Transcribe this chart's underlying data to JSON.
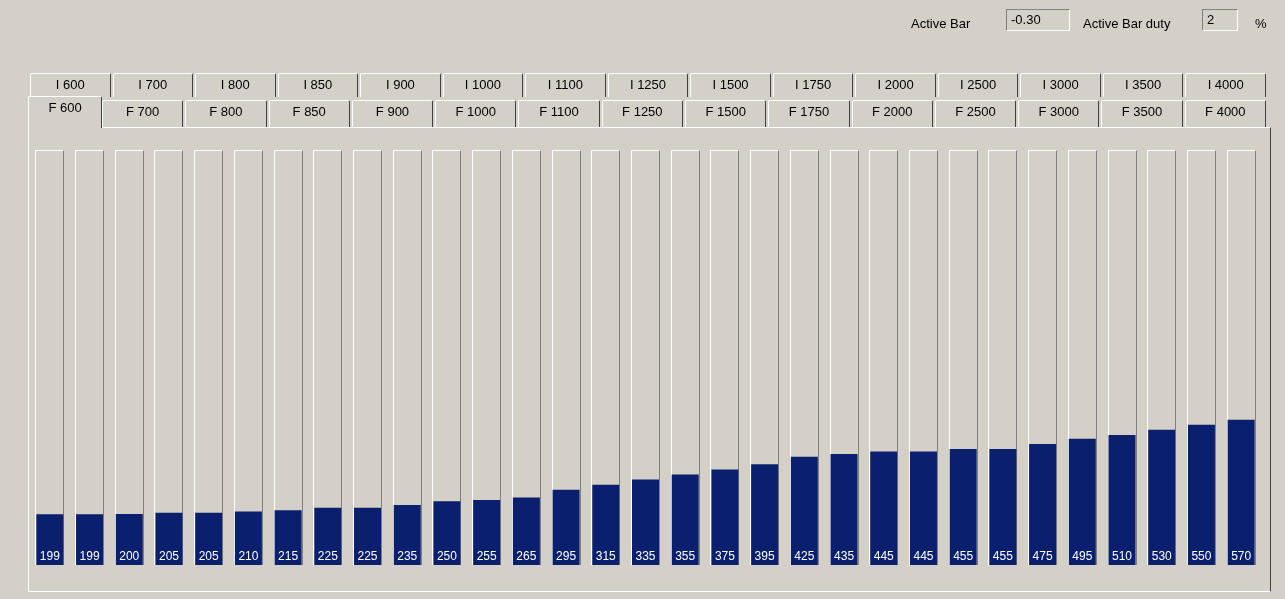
{
  "chart_data": {
    "type": "bar",
    "categories": [
      null,
      null,
      null,
      null,
      null,
      null,
      null,
      null,
      null,
      null,
      null,
      null,
      null,
      null,
      null,
      null,
      null,
      null,
      null,
      null,
      null,
      null,
      null,
      null,
      null,
      null,
      null,
      null,
      null,
      null,
      null
    ],
    "values": [
      199,
      199,
      200,
      205,
      205,
      210,
      215,
      225,
      225,
      235,
      250,
      255,
      265,
      295,
      315,
      335,
      355,
      375,
      395,
      425,
      435,
      445,
      445,
      455,
      455,
      475,
      495,
      510,
      530,
      550,
      570
    ],
    "color": "#0a1f6e",
    "data_labels": true,
    "tick_labels": false,
    "annotations": [
      "Active Bar",
      "-0.30",
      "Active Bar duty",
      "2",
      "%",
      "I 600",
      "I 700",
      "I 800",
      "I 850",
      "I 900",
      "I 1000",
      "I 1100",
      "I 1250",
      "I 1500",
      "I 1750",
      "I 2000",
      "I 2500",
      "I 3000",
      "I 3500",
      "I 4000",
      "F 600",
      "F 700",
      "F 800",
      "F 850",
      "F 900",
      "F 1000",
      "F 1100",
      "F 1250",
      "F 1500",
      "F 1750",
      "F 2000",
      "F 2500",
      "F 3000",
      "F 3500",
      "F 4000"
    ]
  }
}
